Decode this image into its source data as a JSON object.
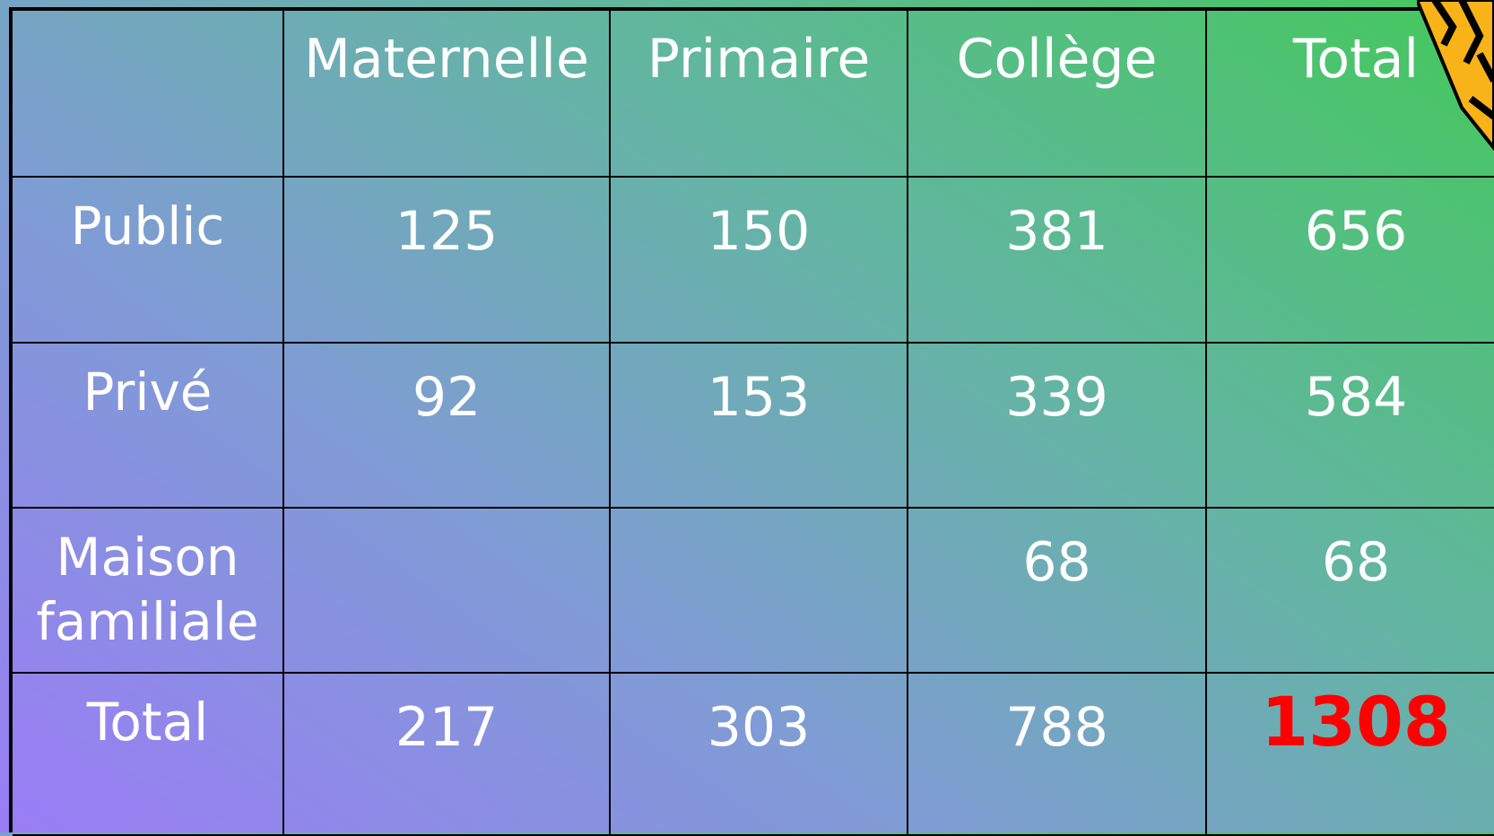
{
  "table": {
    "columns": [
      "Maternelle",
      "Primaire",
      "Collège",
      "Total"
    ],
    "rows": [
      {
        "label": "Public",
        "cells": [
          125,
          150,
          381,
          656
        ]
      },
      {
        "label": "Privé",
        "cells": [
          92,
          153,
          339,
          584
        ]
      },
      {
        "label": "Maison familiale",
        "cells": [
          null,
          null,
          68,
          68
        ]
      },
      {
        "label": "Total",
        "cells": [
          217,
          303,
          788,
          1308
        ]
      }
    ]
  }
}
